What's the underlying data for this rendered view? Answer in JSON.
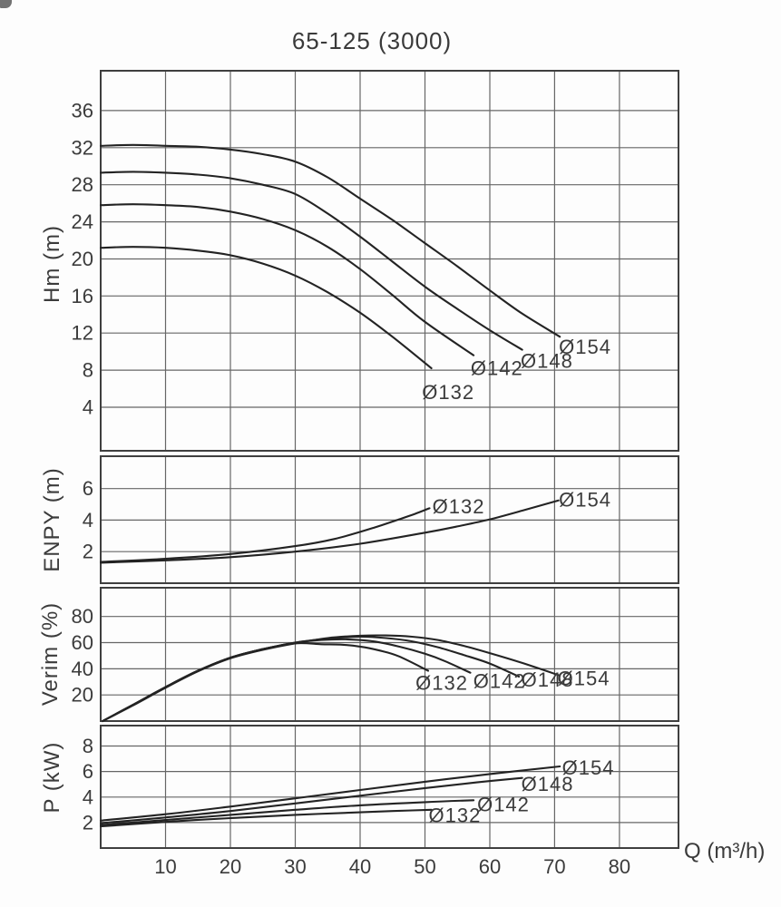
{
  "title": "65-125 (3000)",
  "colors": {
    "curve": "#232323",
    "grid": "#666666",
    "border": "#3f3f3f",
    "text": "#3b3b3b",
    "background": "#fdfdfd"
  },
  "xaxis": {
    "label": "Q (m³/h)",
    "min": 0,
    "max": 89.1,
    "ticks": [
      10,
      20,
      30,
      40,
      50,
      60,
      70,
      80
    ]
  },
  "chart_data": [
    {
      "type": "line",
      "panel": "head",
      "ylabel": "Hm (m)",
      "ymin": -0.7,
      "ymax": 40.3,
      "yticks": [
        4,
        8,
        12,
        16,
        20,
        24,
        28,
        32,
        36
      ],
      "grid": true,
      "series": [
        {
          "name": "Ø154",
          "label_at": [
            74.7,
            10.5
          ],
          "points": [
            [
              0,
              32.2
            ],
            [
              5,
              32.3
            ],
            [
              10,
              32.2
            ],
            [
              15,
              32.1
            ],
            [
              20,
              31.8
            ],
            [
              25,
              31.3
            ],
            [
              30,
              30.5
            ],
            [
              35,
              28.8
            ],
            [
              40,
              26.5
            ],
            [
              45,
              24.2
            ],
            [
              50,
              21.7
            ],
            [
              55,
              19.2
            ],
            [
              60,
              16.6
            ],
            [
              65,
              14.1
            ],
            [
              70.8,
              11.6
            ]
          ]
        },
        {
          "name": "Ø148",
          "label_at": [
            68.8,
            9.0
          ],
          "points": [
            [
              0,
              29.3
            ],
            [
              5,
              29.4
            ],
            [
              10,
              29.3
            ],
            [
              15,
              29.1
            ],
            [
              20,
              28.7
            ],
            [
              25,
              28.0
            ],
            [
              30,
              27.0
            ],
            [
              35,
              24.9
            ],
            [
              40,
              22.4
            ],
            [
              45,
              19.7
            ],
            [
              50,
              17.0
            ],
            [
              55,
              14.6
            ],
            [
              60,
              12.3
            ],
            [
              65,
              10.2
            ]
          ]
        },
        {
          "name": "Ø142",
          "label_at": [
            61.1,
            8.2
          ],
          "points": [
            [
              0,
              25.8
            ],
            [
              5,
              25.9
            ],
            [
              10,
              25.8
            ],
            [
              15,
              25.6
            ],
            [
              20,
              25.1
            ],
            [
              25,
              24.3
            ],
            [
              30,
              23.1
            ],
            [
              35,
              21.3
            ],
            [
              40,
              18.9
            ],
            [
              45,
              16.1
            ],
            [
              50,
              13.2
            ],
            [
              57.5,
              9.6
            ]
          ]
        },
        {
          "name": "Ø132",
          "label_at": [
            53.6,
            5.6
          ],
          "points": [
            [
              0,
              21.2
            ],
            [
              5,
              21.3
            ],
            [
              10,
              21.2
            ],
            [
              15,
              20.9
            ],
            [
              20,
              20.4
            ],
            [
              25,
              19.5
            ],
            [
              30,
              18.2
            ],
            [
              35,
              16.4
            ],
            [
              40,
              14.2
            ],
            [
              45,
              11.6
            ],
            [
              51,
              8.2
            ]
          ]
        }
      ]
    },
    {
      "type": "line",
      "panel": "npsh",
      "ylabel": "ENPY (m)",
      "ymin": 0,
      "ymax": 8.05,
      "yticks": [
        2,
        4,
        6
      ],
      "grid": true,
      "series": [
        {
          "name": "Ø154",
          "label_at": [
            74.7,
            5.3
          ],
          "points": [
            [
              0,
              1.3
            ],
            [
              10,
              1.45
            ],
            [
              20,
              1.65
            ],
            [
              30,
              2.0
            ],
            [
              40,
              2.5
            ],
            [
              50,
              3.2
            ],
            [
              55,
              3.6
            ],
            [
              60,
              4.05
            ],
            [
              65,
              4.6
            ],
            [
              70.6,
              5.25
            ]
          ]
        },
        {
          "name": "Ø132",
          "label_at": [
            55.2,
            4.85
          ],
          "points": [
            [
              0,
              1.35
            ],
            [
              10,
              1.55
            ],
            [
              20,
              1.85
            ],
            [
              30,
              2.35
            ],
            [
              36,
              2.8
            ],
            [
              42,
              3.5
            ],
            [
              46,
              4.05
            ],
            [
              48.5,
              4.4
            ],
            [
              50.7,
              4.75
            ]
          ]
        }
      ]
    },
    {
      "type": "line",
      "panel": "efficiency",
      "ylabel": "Verim (%)",
      "ymin": 0,
      "ymax": 102,
      "yticks": [
        20,
        40,
        60,
        80
      ],
      "grid": true,
      "series": [
        {
          "name": "Ø154",
          "label_at": [
            74.5,
            32.6
          ],
          "points": [
            [
              0.3,
              0
            ],
            [
              5,
              12
            ],
            [
              10,
              25.5
            ],
            [
              15,
              38
            ],
            [
              20,
              48
            ],
            [
              25,
              54.5
            ],
            [
              30,
              59.5
            ],
            [
              35,
              63.5
            ],
            [
              40,
              65.3
            ],
            [
              44,
              65.5
            ],
            [
              48,
              64.5
            ],
            [
              52,
              62
            ],
            [
              56,
              57.5
            ],
            [
              60,
              52
            ],
            [
              65,
              44.5
            ],
            [
              70.7,
              35
            ]
          ]
        },
        {
          "name": "Ø148",
          "label_at": [
            68.9,
            31.5
          ],
          "points": [
            [
              0.3,
              0
            ],
            [
              5,
              12.5
            ],
            [
              10,
              26
            ],
            [
              15,
              38.5
            ],
            [
              20,
              48.5
            ],
            [
              25,
              55
            ],
            [
              30,
              60
            ],
            [
              35,
              63
            ],
            [
              40,
              64.5
            ],
            [
              44,
              63.5
            ],
            [
              48,
              61
            ],
            [
              52,
              56.5
            ],
            [
              56,
              50.5
            ],
            [
              60,
              44
            ],
            [
              64.5,
              34
            ]
          ]
        },
        {
          "name": "Ø142",
          "label_at": [
            61.5,
            30.5
          ],
          "points": [
            [
              0.3,
              0
            ],
            [
              5,
              12.5
            ],
            [
              10,
              26
            ],
            [
              15,
              38.5
            ],
            [
              20,
              48.5
            ],
            [
              25,
              55
            ],
            [
              30,
              60
            ],
            [
              34,
              62
            ],
            [
              38,
              62.5
            ],
            [
              42,
              61
            ],
            [
              46,
              57
            ],
            [
              50,
              51.5
            ],
            [
              53,
              46
            ],
            [
              57,
              37
            ]
          ]
        },
        {
          "name": "Ø132",
          "label_at": [
            52.6,
            29.2
          ],
          "points": [
            [
              0.3,
              0
            ],
            [
              5,
              12.5
            ],
            [
              10,
              26
            ],
            [
              15,
              38.5
            ],
            [
              20,
              48.5
            ],
            [
              25,
              55
            ],
            [
              30,
              59.5
            ],
            [
              34,
              58.8
            ],
            [
              37,
              58.5
            ],
            [
              40,
              57
            ],
            [
              43,
              54
            ],
            [
              46,
              49.5
            ],
            [
              50.5,
              38.5
            ]
          ]
        }
      ]
    },
    {
      "type": "line",
      "panel": "power",
      "ylabel": "P (kW)",
      "ymin": 0,
      "ymax": 9.6,
      "yticks": [
        2,
        4,
        6,
        8
      ],
      "grid": true,
      "series": [
        {
          "name": "Ø154",
          "label_at": [
            75.2,
            6.3
          ],
          "points": [
            [
              0,
              2.15
            ],
            [
              10,
              2.65
            ],
            [
              20,
              3.25
            ],
            [
              30,
              3.9
            ],
            [
              40,
              4.55
            ],
            [
              50,
              5.2
            ],
            [
              60,
              5.8
            ],
            [
              70.8,
              6.4
            ]
          ]
        },
        {
          "name": "Ø148",
          "label_at": [
            68.9,
            5.0
          ],
          "points": [
            [
              0,
              1.95
            ],
            [
              10,
              2.4
            ],
            [
              20,
              2.9
            ],
            [
              30,
              3.5
            ],
            [
              40,
              4.1
            ],
            [
              50,
              4.7
            ],
            [
              58,
              5.15
            ],
            [
              65,
              5.5
            ]
          ]
        },
        {
          "name": "Ø142",
          "label_at": [
            62.1,
            3.4
          ],
          "points": [
            [
              0,
              1.8
            ],
            [
              10,
              2.2
            ],
            [
              20,
              2.6
            ],
            [
              30,
              3.0
            ],
            [
              40,
              3.35
            ],
            [
              50,
              3.6
            ],
            [
              57.5,
              3.75
            ]
          ]
        },
        {
          "name": "Ø132",
          "label_at": [
            54.6,
            2.55
          ],
          "points": [
            [
              0,
              1.7
            ],
            [
              10,
              2.05
            ],
            [
              20,
              2.35
            ],
            [
              30,
              2.6
            ],
            [
              40,
              2.8
            ],
            [
              45,
              2.9
            ],
            [
              51,
              3.0
            ]
          ]
        }
      ]
    }
  ]
}
